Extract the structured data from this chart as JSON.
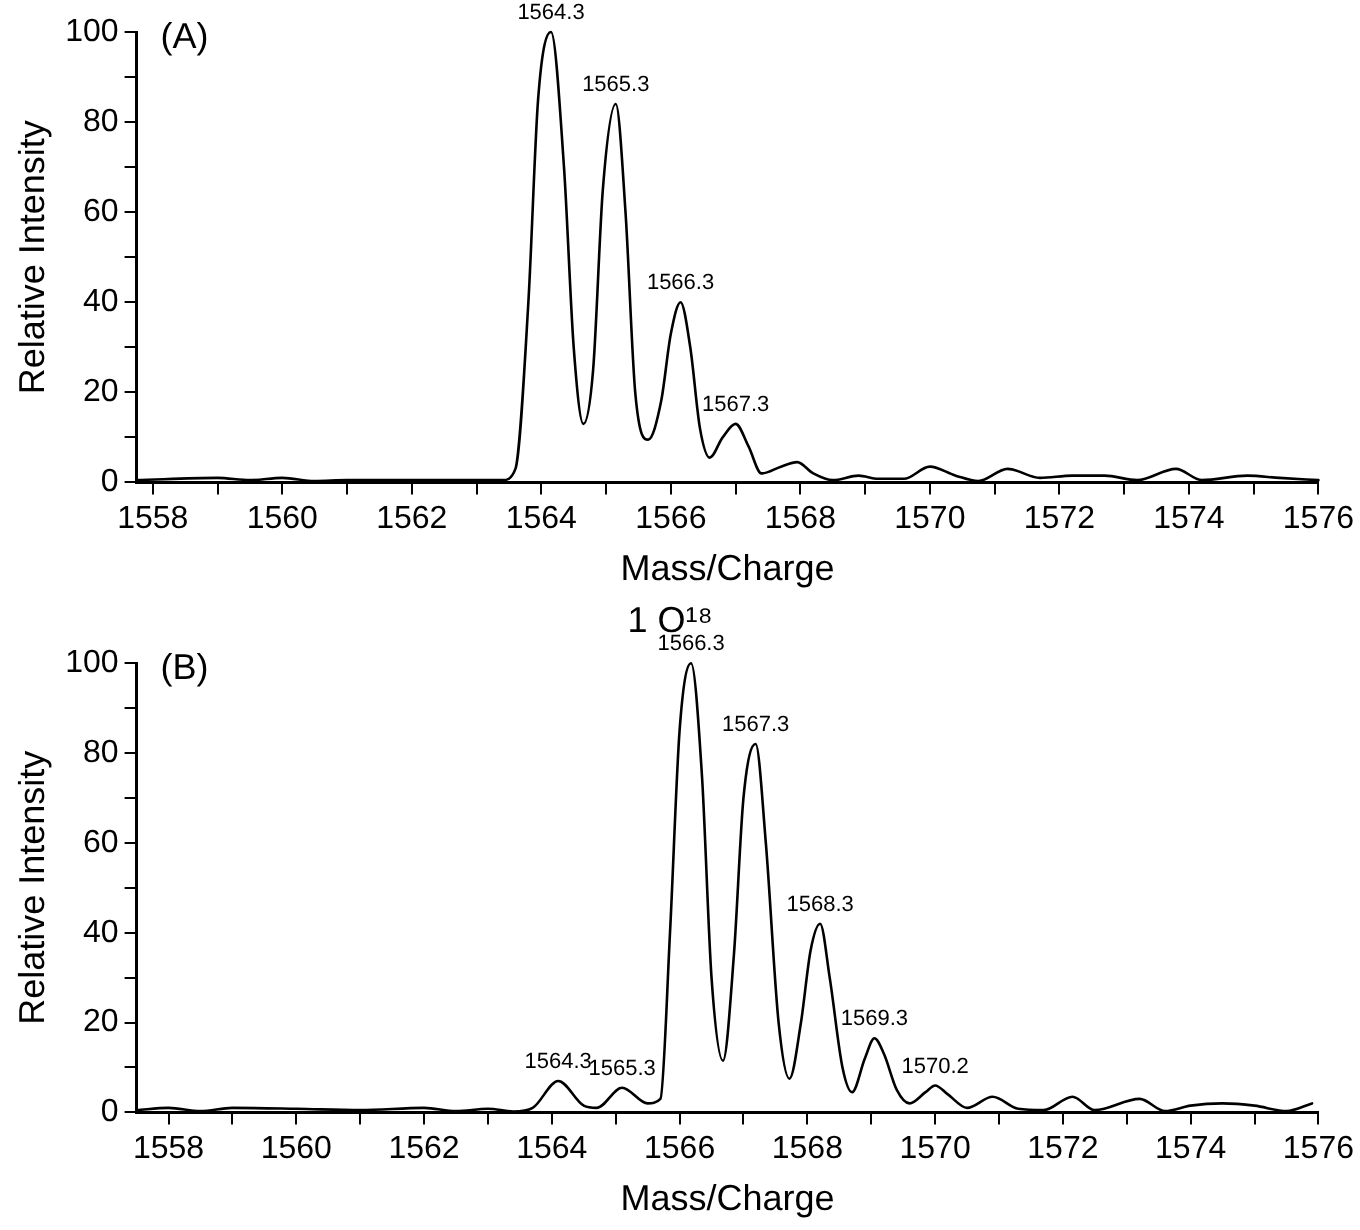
{
  "chart_data": [
    {
      "type": "line",
      "xlabel": "Mass/Charge",
      "ylabel": "Relative Intensity",
      "marker": "none",
      "line_style": "solid",
      "grid": false,
      "legend": false,
      "xlim": [
        1557.75,
        1576
      ],
      "xticks": [
        1558,
        {
          "value": 1559,
          "label": null
        },
        1560,
        {
          "value": 1561,
          "label": null
        },
        1562,
        {
          "value": 1563,
          "label": null
        },
        1564,
        {
          "value": 1565,
          "label": null
        },
        1566,
        {
          "value": 1567,
          "label": null
        },
        1568,
        {
          "value": 1569,
          "label": null
        },
        1570,
        {
          "value": 1571,
          "label": null
        },
        1572,
        {
          "value": 1573,
          "label": null
        },
        1574,
        {
          "value": 1575,
          "label": null
        },
        1576
      ],
      "ylim": [
        0,
        100
      ],
      "yticks": [
        0,
        {
          "value": 10,
          "label": null
        },
        20,
        {
          "value": 30,
          "label": null
        },
        40,
        {
          "value": 50,
          "label": null
        },
        60,
        {
          "value": 70,
          "label": null
        },
        80,
        {
          "value": 90,
          "label": null
        },
        100
      ],
      "series": [
        {
          "color": "#000000",
          "x": [
            1557.75,
            1559,
            1559.5,
            1560,
            1560.5,
            1561,
            1562,
            1563,
            1563.4,
            1563.6,
            1563.8,
            1563.95,
            1564.15,
            1564.35,
            1564.5,
            1564.65,
            1564.8,
            1564.95,
            1565.15,
            1565.3,
            1565.45,
            1565.65,
            1565.85,
            1566.0,
            1566.15,
            1566.3,
            1566.45,
            1566.6,
            1566.8,
            1567.0,
            1567.2,
            1567.4,
            1567.7,
            1567.95,
            1568.2,
            1568.5,
            1568.9,
            1569.2,
            1569.6,
            1570.0,
            1570.4,
            1570.75,
            1571.2,
            1571.7,
            1572.2,
            1572.7,
            1573.2,
            1573.8,
            1574.2,
            1574.9,
            1575.4,
            1576
          ],
          "values": [
            0.5,
            1,
            0.5,
            1,
            0.3,
            0.5,
            0.5,
            0.5,
            0.5,
            3,
            40,
            85,
            100,
            70,
            30,
            13,
            25,
            65,
            84,
            60,
            20,
            9.5,
            18,
            33,
            40,
            30,
            12,
            5.5,
            10,
            13,
            8,
            2,
            3.5,
            4.5,
            2,
            0.5,
            1.5,
            0.8,
            0.8,
            3.5,
            1.5,
            0.3,
            3,
            1,
            1.5,
            1.5,
            0.5,
            3,
            0.5,
            1.5,
            1,
            0.5
          ]
        }
      ],
      "annotations": [
        "(A)",
        {
          "text": "1564.3",
          "x": 1564.15,
          "y": 100
        },
        {
          "text": "1565.3",
          "x": 1565.15,
          "y": 84
        },
        {
          "text": "1566.3",
          "x": 1566.15,
          "y": 40
        },
        {
          "text": "1567.3",
          "x": 1567.0,
          "y": 13
        }
      ]
    },
    {
      "type": "line",
      "title": "1 O¹⁸",
      "xlabel": "Mass/Charge",
      "ylabel": "Relative Intensity",
      "marker": "none",
      "line_style": "solid",
      "grid": false,
      "legend": false,
      "xlim": [
        1557.5,
        1576
      ],
      "xticks": [
        1558,
        {
          "value": 1559,
          "label": null
        },
        1560,
        {
          "value": 1561,
          "label": null
        },
        1562,
        {
          "value": 1563,
          "label": null
        },
        1564,
        {
          "value": 1565,
          "label": null
        },
        1566,
        {
          "value": 1567,
          "label": null
        },
        1568,
        {
          "value": 1569,
          "label": null
        },
        1570,
        {
          "value": 1571,
          "label": null
        },
        1572,
        {
          "value": 1573,
          "label": null
        },
        1574,
        {
          "value": 1575,
          "label": null
        },
        1576
      ],
      "ylim": [
        0,
        100
      ],
      "yticks": [
        0,
        {
          "value": 10,
          "label": null
        },
        20,
        {
          "value": 30,
          "label": null
        },
        40,
        {
          "value": 50,
          "label": null
        },
        60,
        {
          "value": 70,
          "label": null
        },
        80,
        {
          "value": 90,
          "label": null
        },
        100
      ],
      "series": [
        {
          "color": "#000000",
          "x": [
            1557.5,
            1558,
            1558.5,
            1559,
            1560,
            1561,
            1562,
            1562.5,
            1563,
            1563.4,
            1563.7,
            1564.1,
            1564.5,
            1564.7,
            1565.1,
            1565.5,
            1565.7,
            1565.85,
            1566.0,
            1566.18,
            1566.35,
            1566.5,
            1566.68,
            1566.85,
            1567.0,
            1567.19,
            1567.35,
            1567.55,
            1567.72,
            1567.9,
            1568.05,
            1568.2,
            1568.35,
            1568.55,
            1568.7,
            1568.9,
            1569.05,
            1569.2,
            1569.4,
            1569.6,
            1569.85,
            1570.0,
            1570.2,
            1570.5,
            1570.9,
            1571.3,
            1571.7,
            1572.15,
            1572.5,
            1573.2,
            1573.6,
            1574,
            1574.5,
            1575,
            1575.5,
            1575.9
          ],
          "values": [
            0.5,
            1,
            0.3,
            1,
            0.8,
            0.5,
            1,
            0.3,
            0.8,
            0.2,
            1,
            7,
            1.5,
            1,
            5.5,
            2,
            3,
            40,
            85,
            100,
            75,
            30,
            11.5,
            35,
            70,
            82,
            60,
            20,
            7.5,
            20,
            36,
            42,
            30,
            10,
            4.5,
            12,
            16.5,
            13,
            5,
            2,
            4.5,
            6,
            4,
            1,
            3.5,
            0.8,
            0.5,
            3.5,
            0.5,
            3,
            0.3,
            1.5,
            2,
            1.5,
            0.3,
            2
          ]
        }
      ],
      "annotations": [
        "(B)",
        {
          "text": "1564.3",
          "x": 1564.1,
          "y": 7
        },
        {
          "text": "1565.3",
          "x": 1565.1,
          "y": 5.5
        },
        {
          "text": "1566.3",
          "x": 1566.18,
          "y": 100
        },
        {
          "text": "1567.3",
          "x": 1567.19,
          "y": 82
        },
        {
          "text": "1568.3",
          "x": 1568.2,
          "y": 42
        },
        {
          "text": "1569.3",
          "x": 1569.05,
          "y": 16.5
        },
        {
          "text": "1570.2",
          "x": 1570.0,
          "y": 6
        }
      ]
    }
  ]
}
